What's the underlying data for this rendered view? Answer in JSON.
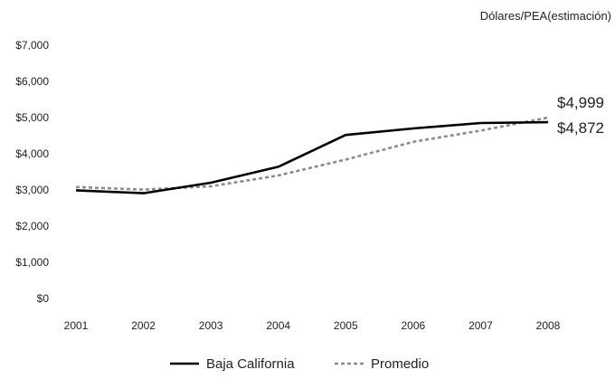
{
  "chart_data": {
    "type": "line",
    "title": "",
    "unit_label": "Dólares/PEA(estimación)",
    "xlabel": "",
    "ylabel": "",
    "categories": [
      "2001",
      "2002",
      "2003",
      "2004",
      "2005",
      "2006",
      "2007",
      "2008"
    ],
    "y_ticks": [
      "$0",
      "$1,000",
      "$2,000",
      "$3,000",
      "$4,000",
      "$5,000",
      "$6,000",
      "$7,000"
    ],
    "ylim": [
      0,
      7000
    ],
    "grid": false,
    "legend_position": "bottom",
    "series": [
      {
        "name": "Baja California",
        "style": "solid",
        "color": "#000000",
        "values": [
          2990,
          2910,
          3200,
          3640,
          4520,
          4700,
          4850,
          4872
        ],
        "end_label": "$4,872"
      },
      {
        "name": "Promedio",
        "style": "dashed",
        "color": "#8c8c8c",
        "values": [
          3080,
          3010,
          3100,
          3400,
          3840,
          4330,
          4640,
          4999
        ],
        "end_label": "$4,999"
      }
    ]
  }
}
